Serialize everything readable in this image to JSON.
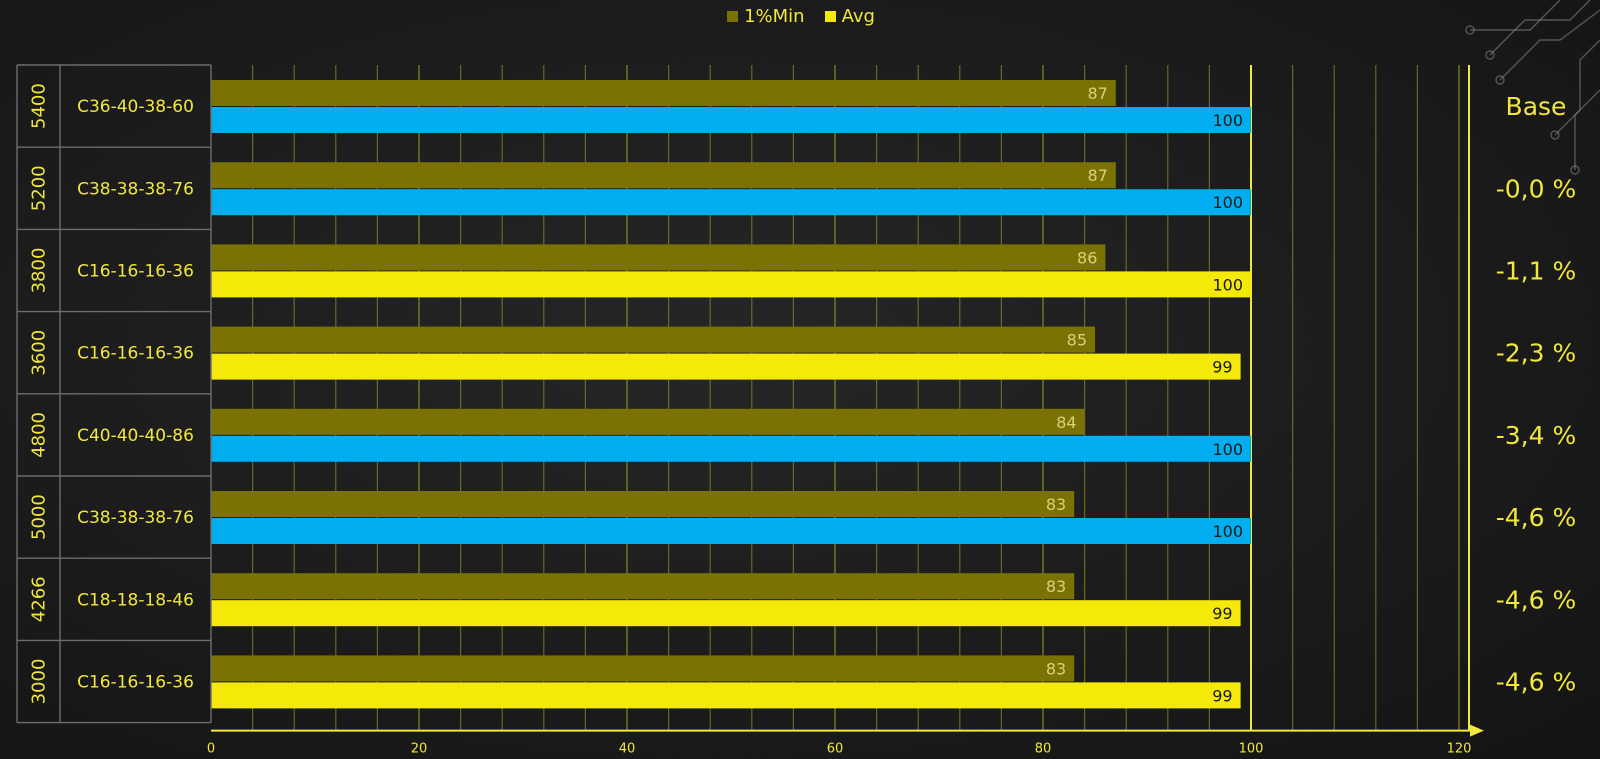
{
  "colors": {
    "min": "#7a7202",
    "avg_ddr4": "#f5e90a",
    "avg_ddr5": "#00aeef",
    "axis": "#f2e73c",
    "label_text": "#f2e73c",
    "grid": "#9c9a2a"
  },
  "chart_data": {
    "type": "bar",
    "orientation": "horizontal",
    "title": "",
    "xlabel": "",
    "ylabel": "",
    "xlim": [
      0,
      120
    ],
    "x_ticks": [
      "0",
      "20",
      "40",
      "60",
      "80",
      "100",
      "120"
    ],
    "legend": {
      "placement": "top-center",
      "entries": [
        {
          "name": "1%Min",
          "color": "#7a7202"
        },
        {
          "name": "Avg",
          "color": "#f5e90a"
        }
      ]
    },
    "rows": [
      {
        "speed": "5400",
        "timings": "C36-40-38-60",
        "min": 87,
        "avg": 100,
        "avg_color": "ddr5",
        "delta": "Base"
      },
      {
        "speed": "5200",
        "timings": "C38-38-38-76",
        "min": 87,
        "avg": 100,
        "avg_color": "ddr5",
        "delta": "-0,0 %"
      },
      {
        "speed": "3800",
        "timings": "C16-16-16-36",
        "min": 86,
        "avg": 100,
        "avg_color": "ddr4",
        "delta": "-1,1 %"
      },
      {
        "speed": "3600",
        "timings": "C16-16-16-36",
        "min": 85,
        "avg": 99,
        "avg_color": "ddr4",
        "delta": "-2,3 %"
      },
      {
        "speed": "4800",
        "timings": "C40-40-40-86",
        "min": 84,
        "avg": 100,
        "avg_color": "ddr5",
        "delta": "-3,4 %"
      },
      {
        "speed": "5000",
        "timings": "C38-38-38-76",
        "min": 83,
        "avg": 100,
        "avg_color": "ddr5",
        "delta": "-4,6 %"
      },
      {
        "speed": "4266",
        "timings": "C18-18-18-46",
        "min": 83,
        "avg": 99,
        "avg_color": "ddr4",
        "delta": "-4,6 %"
      },
      {
        "speed": "3000",
        "timings": "C16-16-16-36",
        "min": 83,
        "avg": 99,
        "avg_color": "ddr4",
        "delta": "-4,6 %"
      }
    ]
  }
}
